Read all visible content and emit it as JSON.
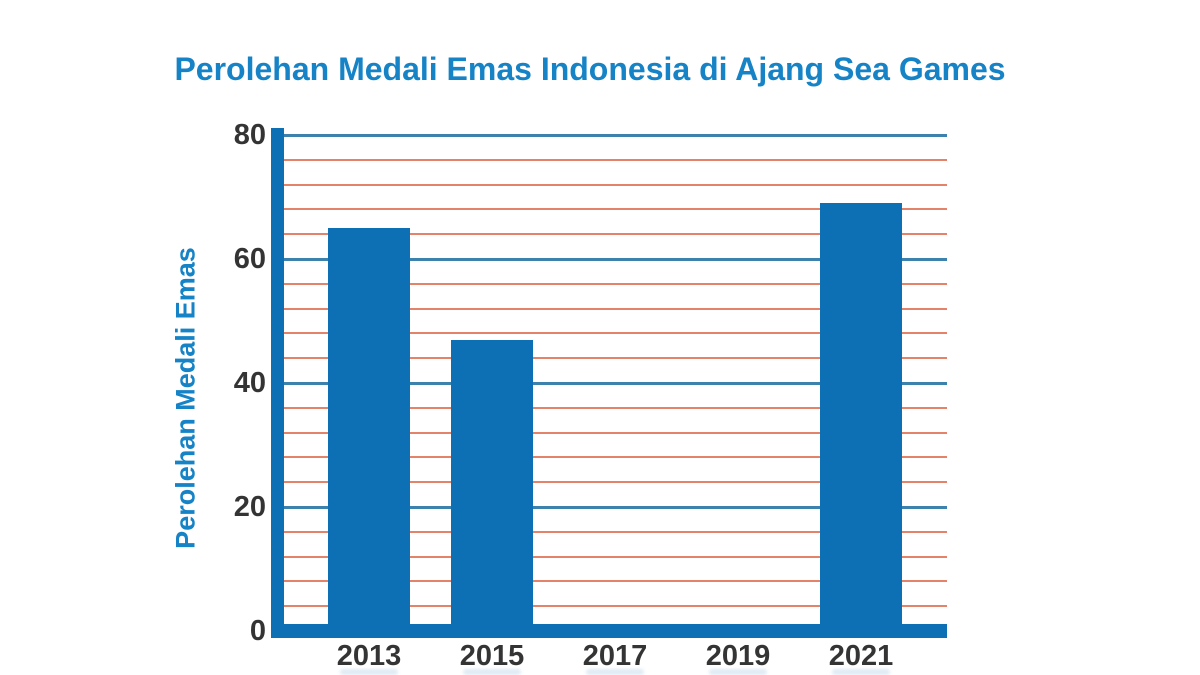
{
  "chart_data": {
    "type": "bar",
    "title": "Perolehan Medali Emas Indonesia di Ajang Sea Games",
    "ylabel": "Perolehan Medali Emas",
    "xlabel": "",
    "categories": [
      "2013",
      "2015",
      "2017",
      "2019",
      "2021"
    ],
    "values": [
      65,
      47,
      0,
      0,
      69
    ],
    "ylim": [
      0,
      80
    ],
    "yticks": [
      0,
      20,
      40,
      60,
      80
    ],
    "grid": true,
    "grid_minor_step": 4,
    "grid_major_step": 20,
    "legend_position": "none",
    "colors": {
      "bar": "#0d70b4",
      "axis": "#0d70b4",
      "major_grid": "#3d81ad",
      "minor_grid": "#e2836a",
      "title": "#1583c6",
      "tick_label": "#343434"
    }
  }
}
